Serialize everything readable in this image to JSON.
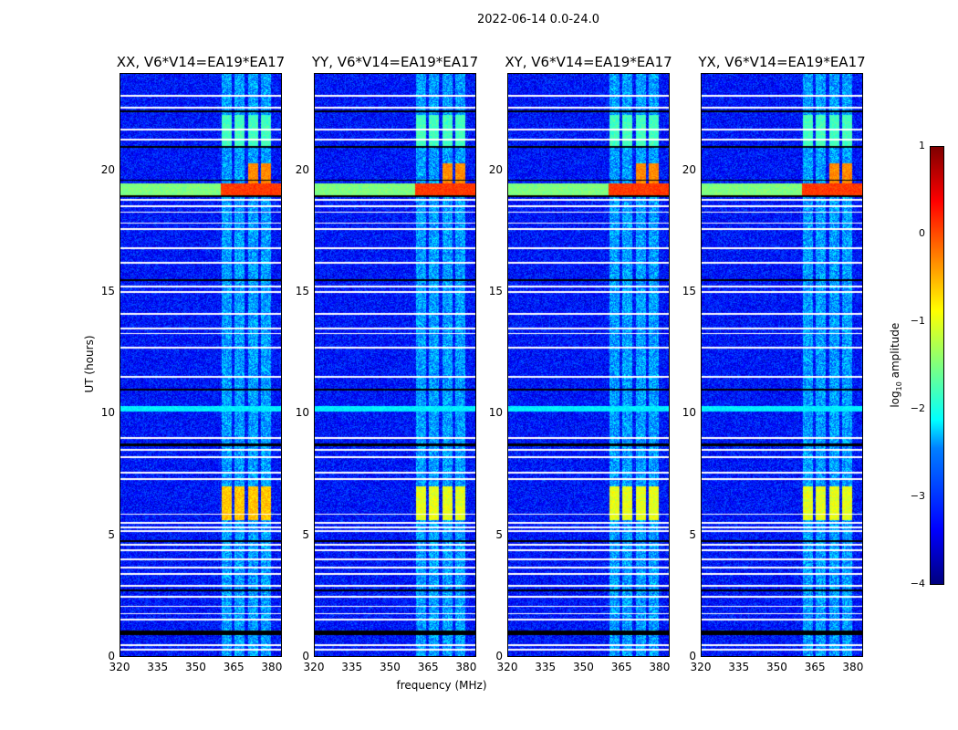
{
  "chart_data": {
    "type": "heatmap",
    "title": "2022-06-14 0.0-24.0",
    "xlabel": "frequency (MHz)",
    "ylabel": "UT (hours)",
    "xlim": [
      320,
      384
    ],
    "ylim": [
      0,
      24
    ],
    "xticks": [
      "320",
      "335",
      "350",
      "365",
      "380"
    ],
    "xtick_values": [
      320,
      335,
      350,
      365,
      380
    ],
    "yticks": [
      "0",
      "5",
      "10",
      "15",
      "20"
    ],
    "ytick_values": [
      0,
      5,
      10,
      15,
      20
    ],
    "colormap": "jet",
    "clim": [
      -4,
      1
    ],
    "colorbar": {
      "label_prefix": "log",
      "label_sub": "10",
      "label_suffix": " amplitude",
      "ticks": [
        "1",
        "0",
        "−1",
        "−2",
        "−3",
        "−4"
      ],
      "tick_values": [
        1,
        0,
        -1,
        -2,
        -3,
        -4
      ]
    },
    "panels": [
      {
        "title": "XX, V6*V14=EA19*EA17",
        "event_strength": 1.0,
        "mid_block": -0.6
      },
      {
        "title": "YY, V6*V14=EA19*EA17",
        "event_strength": 1.0,
        "mid_block": -1.0
      },
      {
        "title": "XY, V6*V14=EA19*EA17",
        "event_strength": 1.0,
        "mid_block": -1.0
      },
      {
        "title": "YX, V6*V14=EA19*EA17",
        "event_strength": 1.0,
        "mid_block": -1.0
      }
    ],
    "background_level": -3.3,
    "rfi_bands_mhz": [
      [
        360.5,
        364.5
      ],
      [
        365.5,
        369.5
      ],
      [
        371,
        375
      ],
      [
        376,
        380
      ]
    ],
    "events": [
      {
        "hours": [
          19.0,
          19.5
        ],
        "freq": [
          360,
          384
        ],
        "level": 0.1
      },
      {
        "hours": [
          19.0,
          19.5
        ],
        "freq": [
          320,
          360
        ],
        "level": -1.5
      },
      {
        "hours": [
          19.5,
          20.3
        ],
        "band_index": [
          2,
          3
        ],
        "level": -0.3
      },
      {
        "hours": [
          5.6,
          7.0
        ],
        "bands": "all",
        "level": "mid_block"
      },
      {
        "hours": [
          21.0,
          22.3
        ],
        "bands": "all",
        "level": -1.8
      },
      {
        "hours": [
          10.1,
          10.3
        ],
        "freq": [
          320,
          384
        ],
        "level": -2.2
      }
    ],
    "flagged_hours_white": [
      0.25,
      0.45,
      1.5,
      1.75,
      2.05,
      2.45,
      2.9,
      3.4,
      3.65,
      4.0,
      4.35,
      4.6,
      5.15,
      5.3,
      5.5,
      5.85,
      7.3,
      7.55,
      8.2,
      8.5,
      9.0,
      11.5,
      12.7,
      13.3,
      13.5,
      14.1,
      15.0,
      15.25,
      16.2,
      16.8,
      17.6,
      17.85,
      18.3,
      18.55,
      18.8,
      21.3,
      21.7,
      22.6,
      23.1
    ]
  }
}
